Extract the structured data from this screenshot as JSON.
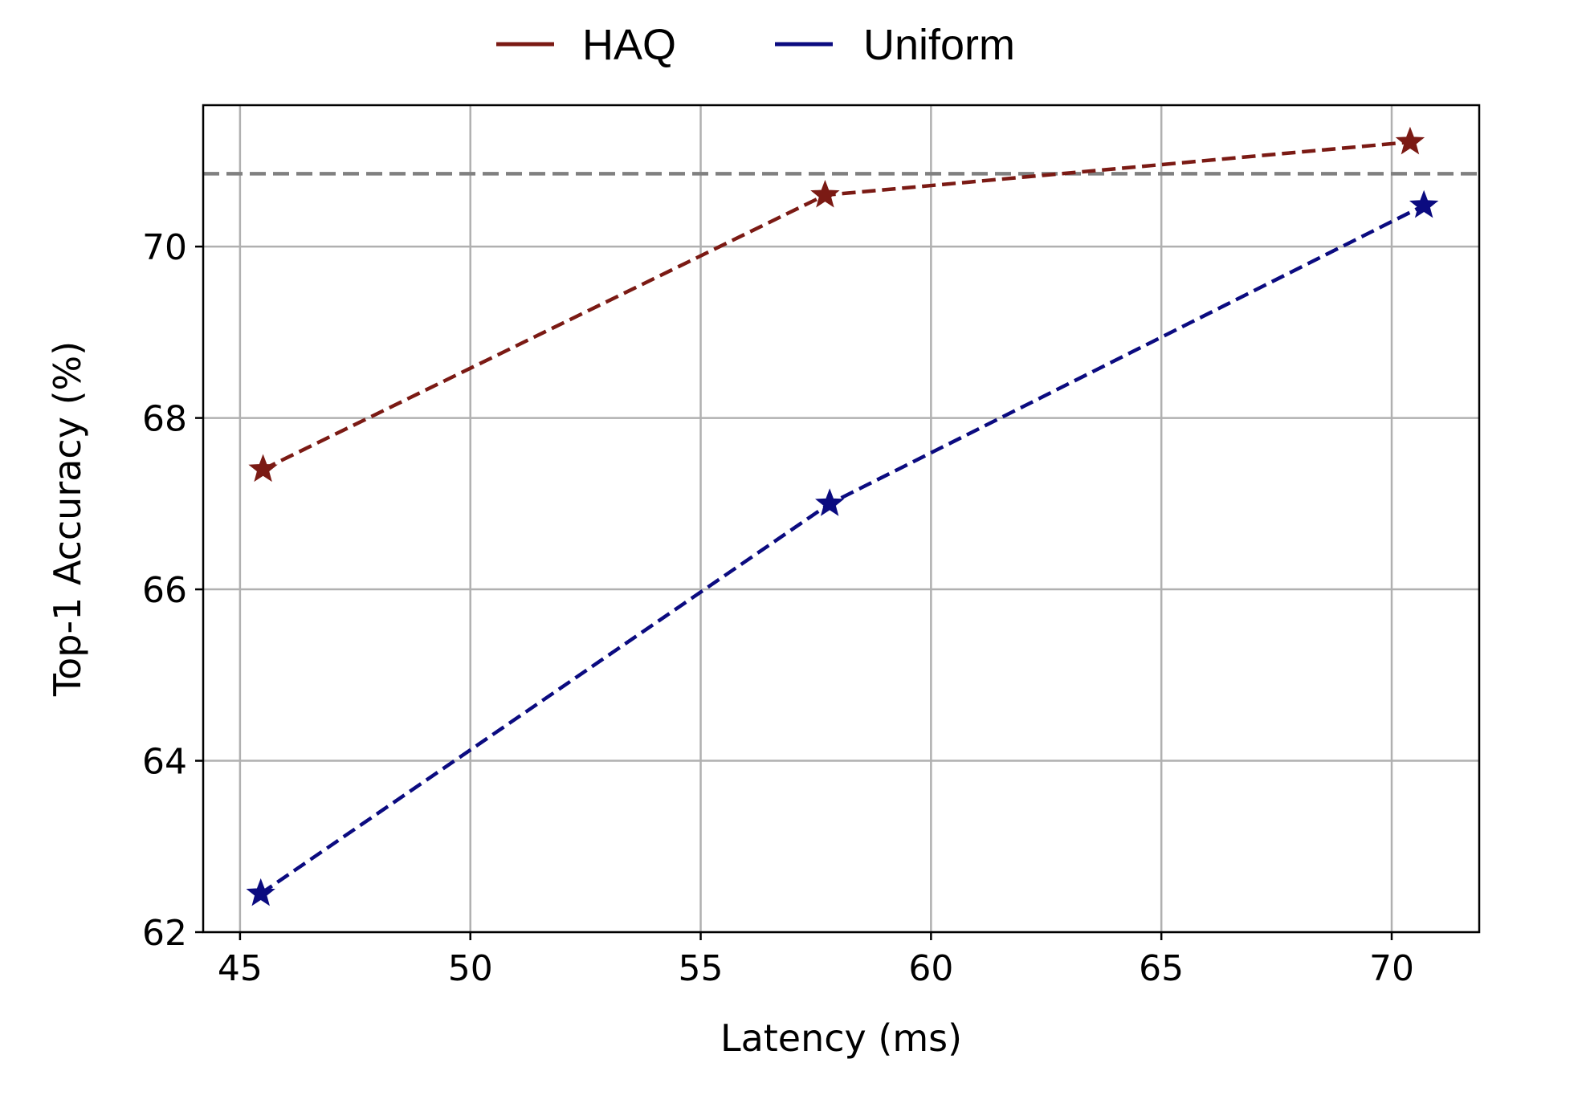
{
  "chart_data": {
    "type": "line",
    "title": "",
    "xlabel": "Latency (ms)",
    "ylabel": "Top-1 Accuracy (%)",
    "xlim": [
      44.2,
      71.9
    ],
    "ylim": [
      62,
      71.65
    ],
    "xticks": [
      45,
      50,
      55,
      60,
      65,
      70
    ],
    "yticks": [
      62,
      64,
      66,
      68,
      70
    ],
    "grid": true,
    "legend_position": "top-center",
    "reference_line": {
      "y": 70.85,
      "color": "#808080",
      "style": "dashed"
    },
    "series": [
      {
        "name": "HAQ",
        "color": "#7b1a14",
        "marker": "star",
        "line_style": "dashed",
        "x": [
          45.5,
          57.7,
          70.4
        ],
        "y": [
          67.4,
          70.6,
          71.22
        ]
      },
      {
        "name": "Uniform",
        "color": "#0b0b80",
        "marker": "star",
        "line_style": "dashed",
        "x": [
          45.45,
          57.8,
          70.7
        ],
        "y": [
          62.45,
          67.0,
          70.48
        ]
      }
    ]
  }
}
